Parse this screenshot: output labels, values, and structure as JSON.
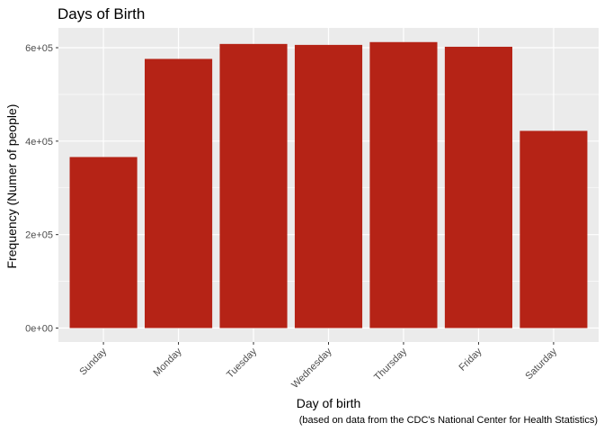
{
  "chart_data": {
    "type": "bar",
    "title": "Days of Birth",
    "xlabel": "Day of birth",
    "ylabel": "Frequency (Numer of people)",
    "caption": "(based on data from the CDC's National Center for Health Statistics)",
    "categories": [
      "Sunday",
      "Monday",
      "Tuesday",
      "Wednesday",
      "Thursday",
      "Friday",
      "Saturday"
    ],
    "values": [
      366000,
      576000,
      608000,
      606000,
      612000,
      602000,
      422000
    ],
    "ylim": [
      0,
      650000
    ],
    "yticks": [
      0,
      200000,
      400000,
      600000
    ],
    "ytick_labels": [
      "0e+00",
      "2e+05",
      "4e+05",
      "6e+05"
    ],
    "grid": true,
    "legend": "none",
    "colors": {
      "bar": "#b52316",
      "panel": "#ebebeb",
      "grid": "#ffffff"
    }
  }
}
